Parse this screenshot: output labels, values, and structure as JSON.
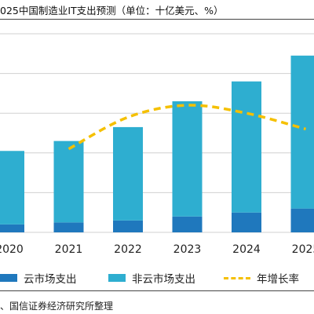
{
  "title": "025中国制造业IT支出预测（单位：十亿美元、%）",
  "source": "、国信证券经济研究所整理",
  "colors": {
    "cloud": "#1f78bd",
    "noncloud": "#2eaed0",
    "growth": "#f5c000",
    "grid": "#d0d0d0"
  },
  "chart_data": {
    "type": "bar",
    "stacked": true,
    "categories": [
      "2020",
      "2021",
      "2022",
      "2023",
      "2024",
      "2025"
    ],
    "series": [
      {
        "name": "云市场支出",
        "type": "bar",
        "values": [
          0.4,
          0.5,
          0.6,
          0.8,
          1.0,
          1.2
        ]
      },
      {
        "name": "非云市场支出",
        "type": "bar",
        "values": [
          3.7,
          4.1,
          4.7,
          5.8,
          6.6,
          7.7
        ]
      },
      {
        "name": "年增长率",
        "type": "line",
        "style": "dashed",
        "values": [
          null,
          10.5,
          14.5,
          16.0,
          15.0,
          13.0
        ]
      }
    ],
    "ylim_left": [
      0,
      10
    ],
    "ylim_right": [
      0,
      25
    ],
    "grid": true,
    "legend_position": "bottom"
  }
}
